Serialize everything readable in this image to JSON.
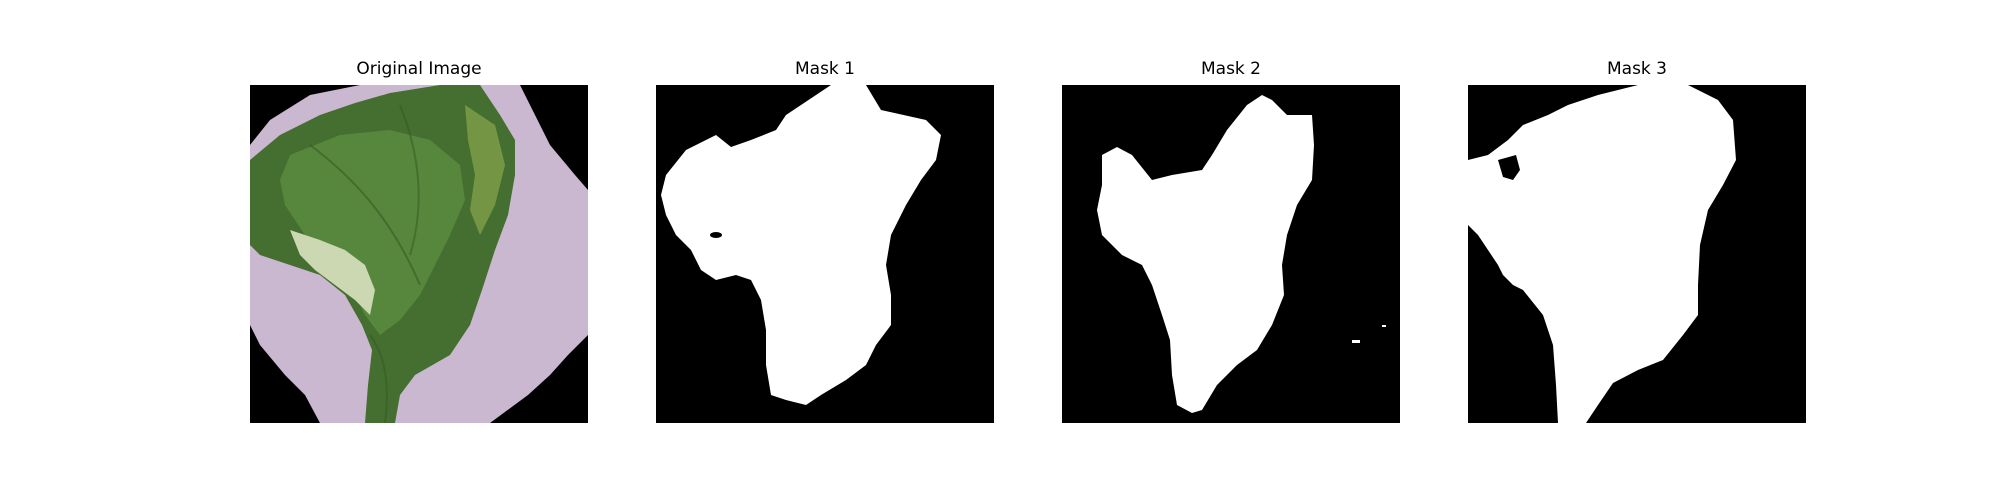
{
  "figure": {
    "panels": [
      {
        "title": "Original Image"
      },
      {
        "title": "Mask 1"
      },
      {
        "title": "Mask 2"
      },
      {
        "title": "Mask 3"
      }
    ]
  },
  "colors": {
    "background": "#ffffff",
    "mask_background": "#000000",
    "mask_foreground": "#ffffff",
    "leaf_dark_green": "#3f6a2a",
    "leaf_mid_green": "#5a8a3e",
    "leaf_pale_green": "#c9d6b0",
    "backdrop_lavender": "#c9b8cf"
  }
}
